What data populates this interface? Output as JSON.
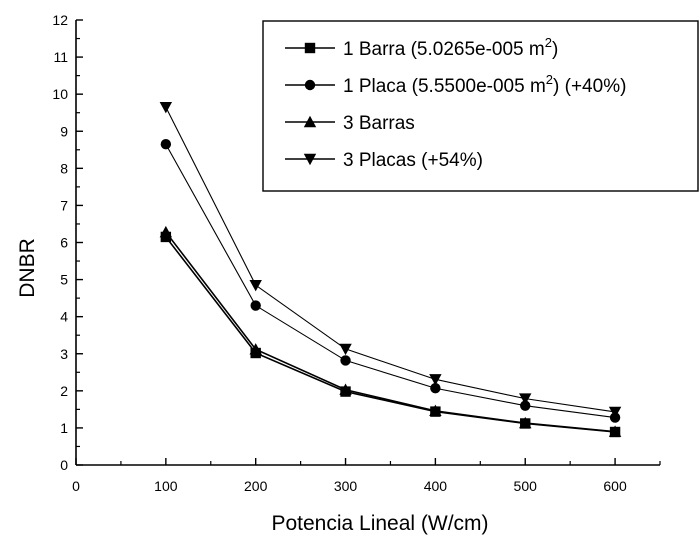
{
  "chart_data": {
    "type": "line",
    "title": "",
    "xlabel": "Potencia Lineal (W/cm)",
    "ylabel": "DNBR",
    "xlim": [
      0,
      650
    ],
    "ylim": [
      0,
      12
    ],
    "xticks": [
      0,
      100,
      200,
      300,
      400,
      500,
      600
    ],
    "yticks": [
      0,
      1,
      2,
      3,
      4,
      5,
      6,
      7,
      8,
      9,
      10,
      11,
      12
    ],
    "grid": false,
    "legend_position": "top-right",
    "x": [
      100,
      200,
      300,
      400,
      500,
      600
    ],
    "series": [
      {
        "name": "1 Barra (5.0265e-005 m",
        "name_sup": "2",
        "name_suffix": ")",
        "marker": "square",
        "values": [
          6.15,
          3.02,
          1.98,
          1.44,
          1.12,
          0.89
        ]
      },
      {
        "name": "1 Placa (5.5500e-005 m",
        "name_sup": "2",
        "name_suffix": ") (+40%)",
        "marker": "circle",
        "values": [
          8.65,
          4.3,
          2.82,
          2.07,
          1.6,
          1.28
        ]
      },
      {
        "name": "3 Barras",
        "name_sup": "",
        "name_suffix": "",
        "marker": "triangle-up",
        "values": [
          6.28,
          3.12,
          2.03,
          1.46,
          1.13,
          0.9
        ]
      },
      {
        "name": "3 Placas (+54%)",
        "name_sup": "",
        "name_suffix": "",
        "marker": "triangle-down",
        "values": [
          9.65,
          4.85,
          3.13,
          2.31,
          1.79,
          1.43
        ]
      }
    ]
  }
}
